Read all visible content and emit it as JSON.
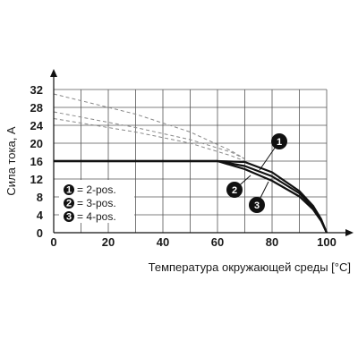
{
  "chart_data": {
    "type": "line",
    "xlabel": "Температура окружающей среды [°C]",
    "ylabel": "Сила тока, А",
    "xlim": [
      0,
      100
    ],
    "ylim": [
      0,
      32
    ],
    "xticks": [
      "0",
      "20",
      "40",
      "60",
      "80",
      "100"
    ],
    "yticks": [
      "0",
      "4",
      "8",
      "12",
      "16",
      "20",
      "24",
      "28",
      "32"
    ],
    "grid": true,
    "legend_position": "lower-left",
    "legend": [
      {
        "marker": "1",
        "label": "= 2-pos."
      },
      {
        "marker": "2",
        "label": "= 3-pos."
      },
      {
        "marker": "3",
        "label": "= 4-pos."
      }
    ],
    "series": [
      {
        "marker": "1",
        "x": [
          0,
          60,
          70,
          80,
          90,
          95,
          98,
          100
        ],
        "y": [
          16,
          16,
          15.8,
          13.5,
          9.3,
          6,
          3,
          0
        ]
      },
      {
        "marker": "2",
        "x": [
          0,
          60,
          70,
          80,
          90,
          95,
          98,
          100
        ],
        "y": [
          16,
          16,
          14.9,
          12.6,
          8.8,
          5.6,
          2.8,
          0
        ]
      },
      {
        "marker": "3",
        "x": [
          0,
          60,
          70,
          80,
          90,
          95,
          98,
          100
        ],
        "y": [
          16,
          16,
          14.2,
          11.6,
          8.1,
          5.2,
          2.6,
          0
        ]
      }
    ],
    "derating_curves": [
      {
        "x": [
          0,
          30,
          50,
          65,
          70
        ],
        "y": [
          31,
          26.5,
          22.5,
          18.3,
          16.5
        ]
      },
      {
        "x": [
          0,
          30,
          50,
          65,
          70
        ],
        "y": [
          27,
          23.5,
          20.8,
          18,
          16.5
        ]
      },
      {
        "x": [
          0,
          30,
          50,
          65,
          70
        ],
        "y": [
          25.5,
          22.5,
          20,
          17.2,
          16
        ]
      }
    ],
    "colors": {
      "line": "#111111",
      "dashed": "#888888",
      "grid": "#555555",
      "marker_fill": "#111111"
    }
  }
}
